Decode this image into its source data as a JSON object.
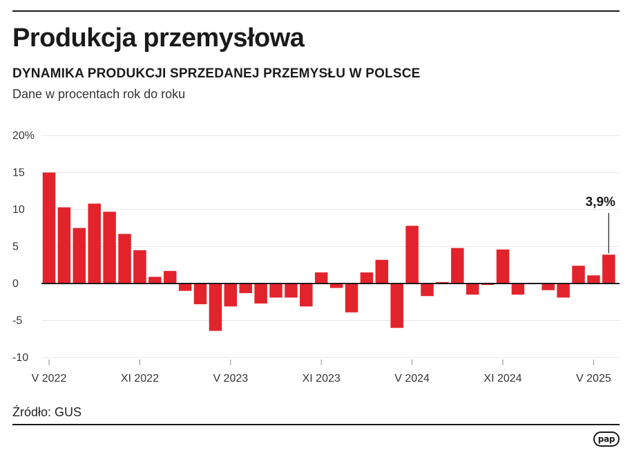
{
  "header": {
    "title": "Produkcja przemysłowa",
    "subtitle": "DYNAMIKA PRODUKCJI SPRZEDANEJ PRZEMYSŁU W POLSCE",
    "note": "Dane w procentach rok do roku"
  },
  "footer": {
    "source": "Źródło: GUS",
    "logo_text": "pap"
  },
  "chart_data": {
    "type": "bar",
    "title": "DYNAMIKA PRODUKCJI SPRZEDANEJ PRZEMYSŁU W POLSCE",
    "xlabel": "",
    "ylabel": "",
    "ylim": [
      -10,
      20
    ],
    "y_ticks": [
      {
        "value": 20,
        "label": "20%"
      },
      {
        "value": 15,
        "label": "15"
      },
      {
        "value": 10,
        "label": "10"
      },
      {
        "value": 5,
        "label": "5"
      },
      {
        "value": 0,
        "label": "0"
      },
      {
        "value": -5,
        "label": "-5"
      },
      {
        "value": -10,
        "label": "-10"
      }
    ],
    "x_ticks": [
      {
        "index": 0,
        "label": "V 2022"
      },
      {
        "index": 6,
        "label": "XI 2022"
      },
      {
        "index": 12,
        "label": "V 2023"
      },
      {
        "index": 18,
        "label": "XI 2023"
      },
      {
        "index": 24,
        "label": "V 2024"
      },
      {
        "index": 30,
        "label": "XI 2024"
      },
      {
        "index": 36,
        "label": "V 2025"
      }
    ],
    "bar_color": "#e3232c",
    "grid": true,
    "values": [
      15.0,
      10.3,
      7.5,
      10.8,
      9.7,
      6.7,
      4.5,
      0.9,
      1.7,
      -1.0,
      -2.8,
      -6.4,
      -3.1,
      -1.3,
      -2.7,
      -1.9,
      -1.9,
      -3.1,
      1.5,
      -0.6,
      -3.9,
      1.5,
      3.2,
      -6.0,
      7.8,
      -1.7,
      0.2,
      4.8,
      -1.5,
      -0.2,
      4.6,
      -1.5,
      0.1,
      -0.9,
      -1.9,
      2.4,
      1.1,
      3.9
    ],
    "annotation": {
      "index": 37,
      "label": "3,9%"
    }
  }
}
